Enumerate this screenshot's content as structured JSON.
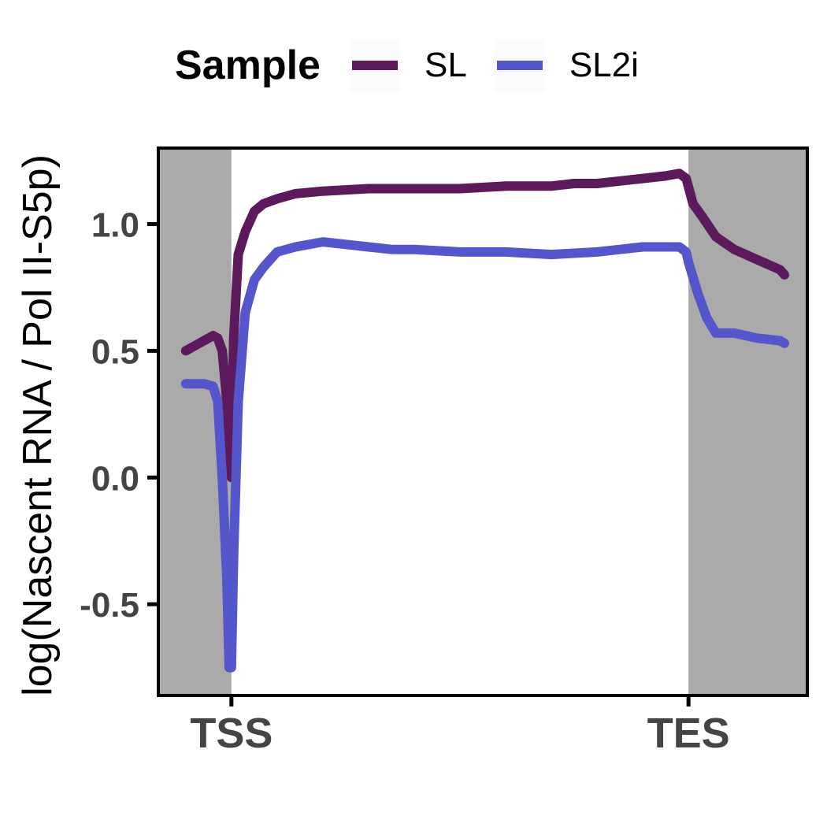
{
  "chart_data": {
    "type": "line",
    "title": "",
    "xlabel": "",
    "ylabel": "log(Nascent RNA / Pol II-S5p)",
    "legend": {
      "title": "Sample",
      "position": "top"
    },
    "xlim": [
      -0.16,
      1.26
    ],
    "ylim": [
      -0.86,
      1.3
    ],
    "x_ticks": [
      {
        "value": 0,
        "label": "TSS"
      },
      {
        "value": 1,
        "label": "TES"
      }
    ],
    "y_ticks": [
      {
        "value": -0.5,
        "label": "-0.5"
      },
      {
        "value": 0.0,
        "label": "0.0"
      },
      {
        "value": 0.5,
        "label": "0.5"
      },
      {
        "value": 1.0,
        "label": "1.0"
      }
    ],
    "shaded_regions": [
      {
        "x0": -0.16,
        "x1": 0,
        "color": "#aaaaaa"
      },
      {
        "x0": 1,
        "x1": 1.26,
        "color": "#aaaaaa"
      }
    ],
    "grid": false,
    "series": [
      {
        "name": "SL",
        "color": "#5c1a5c",
        "points": [
          [
            -0.1,
            0.5
          ],
          [
            -0.08,
            0.52
          ],
          [
            -0.06,
            0.54
          ],
          [
            -0.04,
            0.56
          ],
          [
            -0.03,
            0.55
          ],
          [
            -0.02,
            0.5
          ],
          [
            -0.01,
            0.3
          ],
          [
            0,
            0.0
          ],
          [
            0.005,
            0.55
          ],
          [
            0.015,
            0.88
          ],
          [
            0.03,
            0.97
          ],
          [
            0.05,
            1.05
          ],
          [
            0.07,
            1.08
          ],
          [
            0.1,
            1.1
          ],
          [
            0.14,
            1.12
          ],
          [
            0.2,
            1.13
          ],
          [
            0.3,
            1.14
          ],
          [
            0.4,
            1.14
          ],
          [
            0.5,
            1.14
          ],
          [
            0.6,
            1.15
          ],
          [
            0.7,
            1.15
          ],
          [
            0.75,
            1.16
          ],
          [
            0.8,
            1.16
          ],
          [
            0.85,
            1.17
          ],
          [
            0.9,
            1.18
          ],
          [
            0.95,
            1.19
          ],
          [
            0.98,
            1.2
          ],
          [
            0.995,
            1.18
          ],
          [
            1.01,
            1.08
          ],
          [
            1.03,
            1.03
          ],
          [
            1.06,
            0.95
          ],
          [
            1.1,
            0.9
          ],
          [
            1.15,
            0.86
          ],
          [
            1.2,
            0.82
          ],
          [
            1.21,
            0.8
          ]
        ]
      },
      {
        "name": "SL2i",
        "color": "#5555cc",
        "points": [
          [
            -0.1,
            0.37
          ],
          [
            -0.08,
            0.37
          ],
          [
            -0.06,
            0.37
          ],
          [
            -0.04,
            0.36
          ],
          [
            -0.03,
            0.3
          ],
          [
            -0.02,
            0.0
          ],
          [
            -0.01,
            -0.4
          ],
          [
            -0.005,
            -0.75
          ],
          [
            0.0,
            -0.75
          ],
          [
            0.005,
            -0.3
          ],
          [
            0.015,
            0.3
          ],
          [
            0.03,
            0.65
          ],
          [
            0.05,
            0.78
          ],
          [
            0.07,
            0.83
          ],
          [
            0.1,
            0.89
          ],
          [
            0.14,
            0.91
          ],
          [
            0.2,
            0.93
          ],
          [
            0.25,
            0.92
          ],
          [
            0.3,
            0.91
          ],
          [
            0.35,
            0.9
          ],
          [
            0.4,
            0.9
          ],
          [
            0.5,
            0.89
          ],
          [
            0.6,
            0.89
          ],
          [
            0.7,
            0.88
          ],
          [
            0.8,
            0.89
          ],
          [
            0.85,
            0.9
          ],
          [
            0.9,
            0.91
          ],
          [
            0.95,
            0.91
          ],
          [
            0.98,
            0.91
          ],
          [
            0.995,
            0.89
          ],
          [
            1.0,
            0.85
          ],
          [
            1.02,
            0.73
          ],
          [
            1.04,
            0.63
          ],
          [
            1.06,
            0.57
          ],
          [
            1.1,
            0.57
          ],
          [
            1.15,
            0.55
          ],
          [
            1.2,
            0.54
          ],
          [
            1.21,
            0.53
          ]
        ]
      }
    ]
  }
}
